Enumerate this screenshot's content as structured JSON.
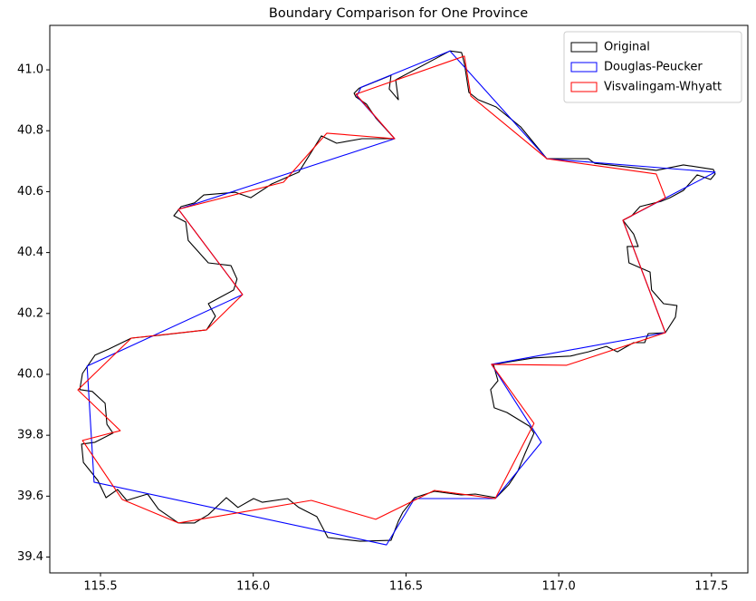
{
  "chart_data": {
    "type": "polygon",
    "title": "Boundary Comparison for One Province",
    "xlim": [
      115.334,
      117.619
    ],
    "ylim": [
      39.348,
      41.146
    ],
    "xticks": [
      115.5,
      {
        "value": 116.0,
        "label": "116.0"
      },
      116.5,
      {
        "value": 117.0,
        "label": "117.0"
      },
      117.5
    ],
    "yticks": [
      39.4,
      39.6,
      39.8,
      {
        "value": 40.0,
        "label": "40.0"
      },
      40.2,
      40.4,
      40.6,
      40.8,
      {
        "value": 41.0,
        "label": "41.0"
      }
    ],
    "legend": "upper right",
    "series": [
      {
        "name": "Original",
        "color": "#000000",
        "x": [
          116.33,
          116.347,
          116.451,
          116.445,
          116.475,
          116.466,
          116.644,
          116.682,
          116.691,
          116.706,
          116.736,
          116.795,
          116.875,
          116.961,
          117.097,
          117.118,
          117.245,
          117.319,
          117.364,
          117.408,
          117.506,
          117.512,
          117.497,
          117.453,
          117.408,
          117.364,
          117.334,
          117.266,
          117.239,
          117.21,
          117.245,
          117.26,
          117.224,
          117.23,
          117.299,
          117.304,
          117.343,
          117.387,
          117.382,
          117.349,
          117.293,
          117.281,
          117.245,
          117.192,
          117.156,
          117.097,
          117.038,
          116.919,
          116.786,
          116.801,
          116.777,
          116.789,
          116.83,
          116.904,
          116.919,
          116.89,
          116.866,
          116.836,
          116.795,
          116.727,
          116.682,
          116.593,
          116.528,
          116.49,
          116.475,
          116.451,
          116.35,
          116.244,
          116.208,
          116.149,
          116.113,
          116.03,
          116.001,
          115.95,
          115.912,
          115.853,
          115.808,
          115.755,
          115.69,
          115.654,
          115.586,
          115.556,
          115.518,
          115.491,
          115.444,
          115.438,
          115.482,
          115.541,
          115.521,
          115.515,
          115.473,
          115.432,
          115.441,
          115.482,
          115.527,
          115.601,
          115.69,
          115.847,
          115.876,
          115.853,
          115.936,
          115.947,
          115.927,
          115.853,
          115.787,
          115.779,
          115.74,
          115.764,
          115.808,
          115.838,
          115.941,
          115.992,
          116.06,
          116.149,
          116.223,
          116.273,
          116.356,
          116.463,
          116.401,
          116.371,
          116.336
        ],
        "values": [
          40.923,
          40.94,
          40.982,
          40.937,
          40.902,
          40.967,
          41.062,
          41.057,
          41.021,
          40.926,
          40.902,
          40.878,
          40.813,
          40.708,
          40.708,
          40.693,
          40.679,
          40.67,
          40.679,
          40.688,
          40.673,
          40.658,
          40.64,
          40.655,
          40.604,
          40.58,
          40.568,
          40.551,
          40.521,
          40.506,
          40.461,
          40.42,
          40.42,
          40.366,
          40.336,
          40.277,
          40.232,
          40.226,
          40.188,
          40.137,
          40.134,
          40.104,
          40.104,
          40.074,
          40.092,
          40.074,
          40.06,
          40.054,
          40.033,
          39.979,
          39.95,
          39.89,
          39.875,
          39.83,
          39.807,
          39.741,
          39.682,
          39.637,
          39.595,
          39.607,
          39.604,
          39.616,
          39.595,
          39.548,
          39.518,
          39.455,
          39.452,
          39.464,
          39.533,
          39.563,
          39.592,
          39.58,
          39.592,
          39.563,
          39.595,
          39.539,
          39.512,
          39.512,
          39.557,
          39.607,
          39.586,
          39.622,
          39.595,
          39.652,
          39.711,
          39.771,
          39.777,
          39.807,
          39.836,
          39.905,
          39.944,
          39.95,
          40.003,
          40.063,
          40.083,
          40.119,
          40.128,
          40.146,
          40.191,
          40.232,
          40.277,
          40.313,
          40.357,
          40.366,
          40.44,
          40.5,
          40.521,
          40.551,
          40.563,
          40.589,
          40.598,
          40.58,
          40.625,
          40.664,
          40.783,
          40.759,
          40.774,
          40.774,
          40.842,
          40.887,
          40.911
        ]
      },
      {
        "name": "Douglas-Peucker",
        "color": "#0000ff",
        "x": [
          116.353,
          116.644,
          116.961,
          117.512,
          117.21,
          117.349,
          116.78,
          116.943,
          116.792,
          116.528,
          116.436,
          115.479,
          115.456,
          115.965,
          115.755,
          116.463,
          116.339
        ],
        "values": [
          40.943,
          41.062,
          40.708,
          40.664,
          40.506,
          40.137,
          40.033,
          39.777,
          39.592,
          39.592,
          39.44,
          39.646,
          40.027,
          40.262,
          40.542,
          40.774,
          40.914
        ]
      },
      {
        "name": "Visvalingam-Whyatt",
        "color": "#ff0000",
        "x": [
          116.336,
          116.691,
          116.712,
          116.961,
          117.319,
          117.349,
          117.21,
          117.349,
          117.026,
          116.78,
          116.919,
          116.792,
          116.593,
          116.401,
          116.19,
          115.755,
          115.571,
          115.441,
          115.565,
          115.426,
          115.601,
          115.847,
          115.965,
          115.755,
          116.099,
          116.241,
          116.463
        ],
        "values": [
          40.92,
          41.045,
          40.914,
          40.708,
          40.658,
          40.58,
          40.506,
          40.137,
          40.03,
          40.033,
          39.839,
          39.592,
          39.619,
          39.524,
          39.586,
          39.512,
          39.589,
          39.783,
          39.815,
          39.949,
          40.119,
          40.146,
          40.262,
          40.542,
          40.631,
          40.792,
          40.774
        ]
      }
    ]
  }
}
